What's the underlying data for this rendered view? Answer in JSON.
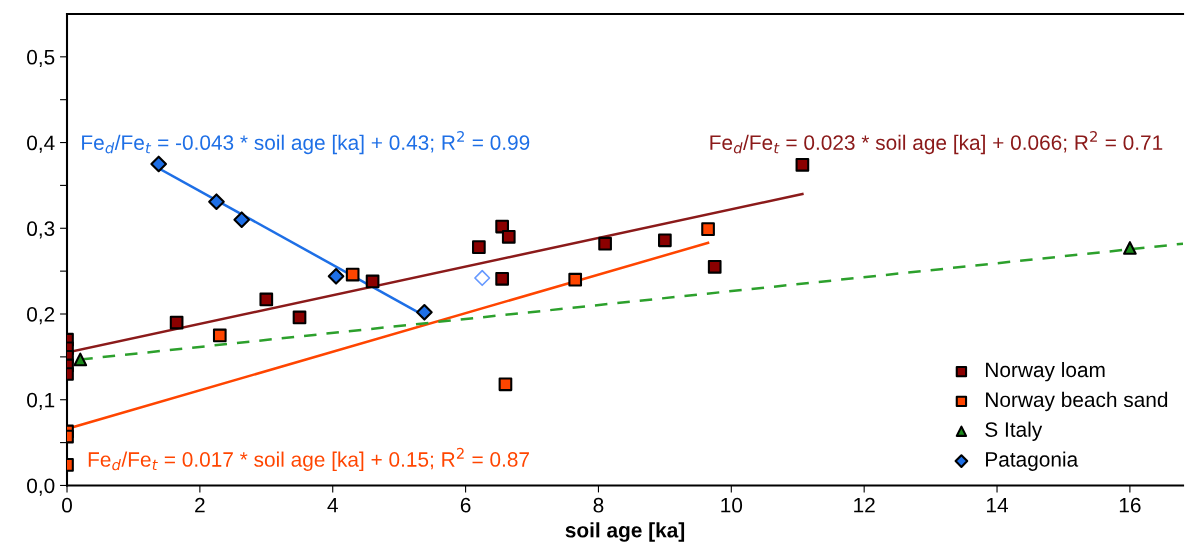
{
  "chart_data": {
    "type": "scatter",
    "xlabel": "soil age [ka]",
    "xlim": [
      0,
      16.8
    ],
    "xticks": [
      0,
      2,
      4,
      6,
      8,
      10,
      12,
      14,
      16
    ],
    "ylim": [
      0,
      0.55
    ],
    "yticks": [
      {
        "value": 0,
        "label": "0,0"
      },
      {
        "value": 0.05,
        "label": null
      },
      {
        "value": 0.1,
        "label": "0,1"
      },
      {
        "value": 0.15,
        "label": null
      },
      {
        "value": 0.2,
        "label": "0,2"
      },
      {
        "value": 0.25,
        "label": null
      },
      {
        "value": 0.3,
        "label": "0,3"
      },
      {
        "value": 0.35,
        "label": null
      },
      {
        "value": 0.4,
        "label": "0,4"
      },
      {
        "value": 0.45,
        "label": null
      },
      {
        "value": 0.5,
        "label": "0,5"
      }
    ],
    "grid": false,
    "legend": "bottom right",
    "series": [
      {
        "name": "Norway loam",
        "marker": "square",
        "color": "#8b0000",
        "x": [
          0,
          0,
          0,
          0,
          0,
          1.65,
          3.0,
          3.5,
          4.6,
          6.2,
          6.55,
          6.65,
          6.55,
          8.1,
          9.0,
          9.75,
          11.07
        ],
        "values": [
          0.17,
          0.16,
          0.15,
          0.14,
          0.13,
          0.19,
          0.217,
          0.196,
          0.238,
          0.278,
          0.302,
          0.29,
          0.241,
          0.282,
          0.286,
          0.255,
          0.374
        ]
      },
      {
        "name": "Norway beach sand",
        "marker": "square",
        "color": "#ff4500",
        "x": [
          0,
          0,
          0,
          2.3,
          4.3,
          6.6,
          7.65,
          9.65
        ],
        "values": [
          0.063,
          0.057,
          0.024,
          0.175,
          0.246,
          0.118,
          0.24,
          0.299
        ]
      },
      {
        "name": "S Italy",
        "marker": "triangle",
        "color": "#1a8a1a",
        "x": [
          0.2,
          16
        ],
        "values": [
          0.147,
          0.277
        ]
      },
      {
        "name": "Patagonia",
        "marker": "diamond",
        "color": "#1e6fe6",
        "x": [
          1.38,
          2.25,
          2.63,
          4.05,
          5.38
        ],
        "values": [
          0.375,
          0.331,
          0.31,
          0.244,
          0.202
        ]
      },
      {
        "marker": "diamond",
        "color": "#6699ff",
        "x": [
          6.25
        ],
        "values": [
          0.242
        ]
      },
      {
        "type": "line",
        "color": "#1e6fe6",
        "line_style": "solid",
        "x": [
          1.38,
          5.38
        ],
        "values": [
          0.37,
          0.198
        ]
      },
      {
        "type": "line",
        "color": "#8b1a1a",
        "line_style": "solid",
        "x": [
          0,
          11.07
        ],
        "values": [
          0.155,
          0.34
        ]
      },
      {
        "type": "line",
        "color": "#ff4500",
        "line_style": "solid",
        "x": [
          0,
          9.65
        ],
        "values": [
          0.066,
          0.283
        ]
      },
      {
        "type": "line",
        "color": "#2ca02c",
        "line_style": "dashed",
        "x": [
          0.2,
          16.8
        ],
        "values": [
          0.147,
          0.282
        ]
      }
    ],
    "annotations": [
      "Fe$_{d}$/Fe$_{t}$ = -0.043 * soil age [ka] + 0.43; R$^{2}$ = 0.99",
      "Fe$_{d}$/Fe$_{t}$ = 0.023 * soil age [ka] + 0.066; R$^{2}$ = 0.71",
      "Fe$_{d}$/Fe$_{t}$ = 0.017 * soil age [ka] + 0.15; R$^{2}$ = 0.87"
    ]
  }
}
